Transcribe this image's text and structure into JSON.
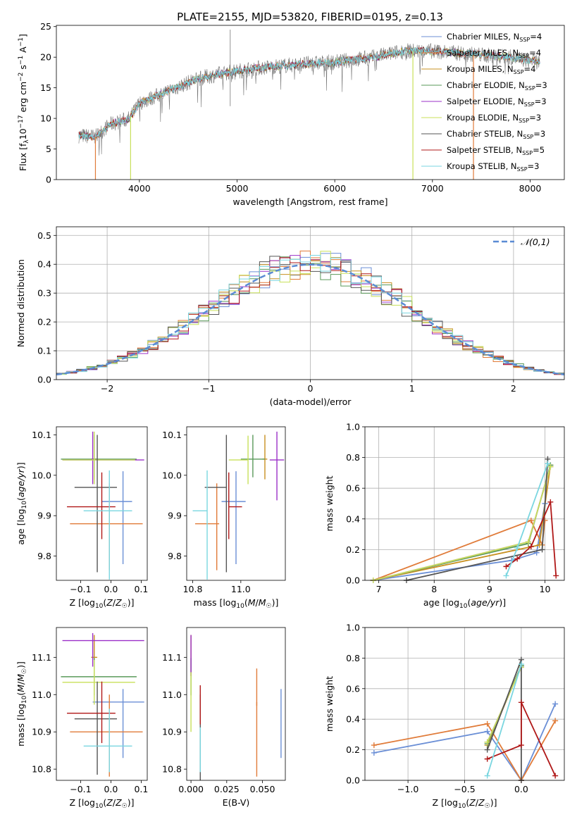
{
  "figure": {
    "title": "PLATE=2155, MJD=53820, FIBERID=0195, z=0.13"
  },
  "series_styles": [
    {
      "name": "Chabrier MILES",
      "nssp": "4",
      "color": "#6b8fd6"
    },
    {
      "name": "Salpeter MILES",
      "nssp": "4",
      "color": "#e07b39"
    },
    {
      "name": "Kroupa MILES",
      "nssp": "4",
      "color": "#c89020"
    },
    {
      "name": "Chabrier ELODIE",
      "nssp": "3",
      "color": "#5a9a5a"
    },
    {
      "name": "Salpeter ELODIE",
      "nssp": "3",
      "color": "#9b30c8"
    },
    {
      "name": "Kroupa ELODIE",
      "nssp": "3",
      "color": "#c8e05a"
    },
    {
      "name": "Chabrier STELIB",
      "nssp": "3",
      "color": "#555555"
    },
    {
      "name": "Salpeter STELIB",
      "nssp": "5",
      "color": "#b01818"
    },
    {
      "name": "Kroupa STELIB",
      "nssp": "3",
      "color": "#7ad6e0"
    }
  ],
  "chart_data": [
    {
      "id": "spectrum",
      "type": "line",
      "xlabel": "wavelength [Angstrom, rest frame]",
      "ylabel": "Flux [f_λ 10^-17 erg cm^-2 s^-1 A^-1]",
      "xlim": [
        3150,
        8350
      ],
      "ylim": [
        0,
        25.2
      ],
      "xticks": [
        4000,
        5000,
        6000,
        7000,
        8000
      ],
      "yticks": [
        0,
        5,
        10,
        15,
        20,
        25
      ],
      "legend": "right",
      "grid": false,
      "observed_spectrum_color": "#777777",
      "continuum_anchors": {
        "x": [
          3380,
          3550,
          3700,
          3900,
          4000,
          4300,
          4600,
          4900,
          5200,
          5600,
          6000,
          6400,
          6700,
          7000,
          7400,
          7800,
          8100
        ],
        "y": [
          7.2,
          7.0,
          9.0,
          10.0,
          12.5,
          14.5,
          16.5,
          17.5,
          18.2,
          18.8,
          19.2,
          20.0,
          21.0,
          21.0,
          20.5,
          20.0,
          19.2
        ]
      }
    },
    {
      "id": "residuals",
      "type": "histogram",
      "xlabel": "(data-model)/error",
      "ylabel": "Normed distribution",
      "xlim": [
        -2.5,
        2.5
      ],
      "ylim": [
        0,
        0.53
      ],
      "xticks": [
        -2,
        -1,
        0,
        1,
        2
      ],
      "yticks": [
        0.0,
        0.1,
        0.2,
        0.3,
        0.4,
        0.5
      ],
      "grid": true,
      "legend": "top-right",
      "normal_curve": {
        "label": "𝒩(0,1)",
        "color": "#5b8bd4",
        "mean": 0,
        "sigma": 1
      },
      "bin_width": 0.1
    },
    {
      "id": "age_vs_Z",
      "type": "errorbar",
      "xlabel": "Z [log10(Z/Z☉)]",
      "ylabel": "age [log10(age/yr)]",
      "xlim": [
        -0.18,
        0.12
      ],
      "ylim": [
        9.74,
        10.12
      ],
      "xticks": [
        -0.1,
        0.0,
        0.1
      ],
      "yticks": [
        9.8,
        9.9,
        10.0,
        10.1
      ],
      "points": [
        {
          "series": "Chabrier MILES",
          "x": 0.04,
          "xerr": [
            0.07,
            0.03
          ],
          "y": 9.935,
          "yerr": [
            0.155,
            0.075
          ]
        },
        {
          "series": "Salpeter MILES",
          "x": -0.005,
          "xerr": [
            0.13,
            0.11
          ],
          "y": 9.88,
          "yerr": [
            0.115,
            0.1
          ]
        },
        {
          "series": "Kroupa MILES",
          "x": -0.055,
          "xerr": [
            0.01,
            0.01
          ],
          "y": 10.04,
          "yerr": [
            0.05,
            0.06
          ]
        },
        {
          "series": "Chabrier ELODIE",
          "x": -0.055,
          "xerr": [
            0.11,
            0.14
          ],
          "y": 10.04,
          "yerr": [
            0.045,
            0.06
          ]
        },
        {
          "series": "Salpeter ELODIE",
          "x": -0.06,
          "xerr": [
            0.1,
            0.17
          ],
          "y": 10.038,
          "yerr": [
            0.06,
            0.07
          ]
        },
        {
          "series": "Kroupa ELODIE",
          "x": -0.055,
          "xerr": [
            0.105,
            0.135
          ],
          "y": 10.038,
          "yerr": [
            0.06,
            0.07
          ]
        },
        {
          "series": "Chabrier STELIB",
          "x": -0.045,
          "xerr": [
            0.075,
            0.065
          ],
          "y": 9.97,
          "yerr": [
            0.21,
            0.13
          ]
        },
        {
          "series": "Salpeter STELIB",
          "x": -0.03,
          "xerr": [
            0.115,
            0.045
          ],
          "y": 9.922,
          "yerr": [
            0.08,
            0.085
          ]
        },
        {
          "series": "Kroupa STELIB",
          "x": -0.005,
          "xerr": [
            0.085,
            0.075
          ],
          "y": 9.912,
          "yerr": [
            0.17,
            0.1
          ]
        }
      ]
    },
    {
      "id": "age_vs_mass",
      "type": "errorbar",
      "xlabel": "mass [log10(M/M☉)]",
      "ylabel": "",
      "xlim": [
        10.775,
        11.185
      ],
      "ylim": [
        9.74,
        10.12
      ],
      "xticks": [
        10.8,
        11.0
      ],
      "yticks": [
        9.8,
        9.9,
        10.0,
        10.1
      ],
      "points": [
        {
          "series": "Chabrier MILES",
          "x": 10.98,
          "xerr": [
            0.06,
            0.04
          ],
          "y": 9.935,
          "yerr": [
            0.155,
            0.075
          ]
        },
        {
          "series": "Salpeter MILES",
          "x": 10.9,
          "xerr": [
            0.09,
            0.01
          ],
          "y": 9.88,
          "yerr": [
            0.115,
            0.1
          ]
        },
        {
          "series": "Kroupa MILES",
          "x": 11.1,
          "xerr": [
            0.01,
            0.01
          ],
          "y": 10.04,
          "yerr": [
            0.05,
            0.06
          ]
        },
        {
          "series": "Chabrier ELODIE",
          "x": 11.05,
          "xerr": [
            0.05,
            0.05
          ],
          "y": 10.04,
          "yerr": [
            0.045,
            0.06
          ]
        },
        {
          "series": "Salpeter ELODIE",
          "x": 11.15,
          "xerr": [
            0.03,
            0.03
          ],
          "y": 10.038,
          "yerr": [
            0.1,
            0.07
          ]
        },
        {
          "series": "Kroupa ELODIE",
          "x": 11.03,
          "xerr": [
            0.08,
            0.0
          ],
          "y": 10.038,
          "yerr": [
            0.06,
            0.06
          ]
        },
        {
          "series": "Chabrier STELIB",
          "x": 10.94,
          "xerr": [
            0.09,
            0.0
          ],
          "y": 9.97,
          "yerr": [
            0.21,
            0.13
          ]
        },
        {
          "series": "Salpeter STELIB",
          "x": 10.95,
          "xerr": [
            0.0,
            0.055
          ],
          "y": 9.922,
          "yerr": [
            0.08,
            0.085
          ]
        },
        {
          "series": "Kroupa STELIB",
          "x": 10.86,
          "xerr": [
            0.06,
            0.0
          ],
          "y": 9.912,
          "yerr": [
            0.17,
            0.1
          ]
        }
      ]
    },
    {
      "id": "weight_vs_age",
      "type": "line",
      "xlabel": "age [log10(age/yr)]",
      "ylabel": "mass weight",
      "xlim": [
        6.75,
        10.35
      ],
      "ylim": [
        0,
        1
      ],
      "xticks": [
        7,
        8,
        9,
        10
      ],
      "yticks": [
        0.0,
        0.2,
        0.4,
        0.6,
        0.8,
        1.0
      ],
      "grid": true,
      "series": [
        {
          "name": "Chabrier MILES",
          "x": [
            6.9,
            9.4,
            9.85,
            10.0
          ],
          "y": [
            0.0,
            0.13,
            0.18,
            0.5
          ]
        },
        {
          "name": "Salpeter MILES",
          "x": [
            6.9,
            9.75,
            9.95,
            10.0
          ],
          "y": [
            0.0,
            0.39,
            0.23,
            0.39
          ]
        },
        {
          "name": "Kroupa MILES",
          "x": [
            6.9,
            9.9,
            10.1
          ],
          "y": [
            0.0,
            0.23,
            0.75
          ]
        },
        {
          "name": "Chabrier ELODIE",
          "x": [
            6.9,
            9.7,
            10.1
          ],
          "y": [
            0.0,
            0.24,
            0.75
          ]
        },
        {
          "name": "Salpeter ELODIE",
          "x": [
            6.9,
            9.7,
            10.1
          ],
          "y": [
            0.0,
            0.25,
            0.74
          ]
        },
        {
          "name": "Kroupa ELODIE",
          "x": [
            6.9,
            9.7,
            10.1
          ],
          "y": [
            0.0,
            0.25,
            0.74
          ]
        },
        {
          "name": "Chabrier STELIB",
          "x": [
            7.5,
            9.95,
            10.05
          ],
          "y": [
            0.0,
            0.2,
            0.79
          ]
        },
        {
          "name": "Salpeter STELIB",
          "x": [
            9.3,
            9.5,
            9.75,
            10.1,
            10.2
          ],
          "y": [
            0.09,
            0.14,
            0.22,
            0.51,
            0.03
          ]
        },
        {
          "name": "Kroupa STELIB",
          "x": [
            9.3,
            9.5,
            10.05
          ],
          "y": [
            0.03,
            0.21,
            0.76
          ]
        }
      ]
    },
    {
      "id": "mass_vs_Z",
      "type": "errorbar",
      "xlabel": "Z [log10(Z/Z☉)]",
      "ylabel": "mass [log10(M/M☉)]",
      "xlim": [
        -0.18,
        0.12
      ],
      "ylim": [
        10.77,
        11.18
      ],
      "xticks": [
        -0.1,
        0.0,
        0.1
      ],
      "yticks": [
        10.8,
        10.9,
        11.0,
        11.1
      ],
      "points": [
        {
          "series": "Chabrier MILES",
          "x": 0.04,
          "xerr": [
            0.1,
            0.07
          ],
          "y": 10.98,
          "yerr": [
            0.15,
            0.035
          ]
        },
        {
          "series": "Salpeter MILES",
          "x": -0.005,
          "xerr": [
            0.13,
            0.11
          ],
          "y": 10.9,
          "yerr": [
            0.12,
            0.1
          ]
        },
        {
          "series": "Kroupa MILES",
          "x": -0.055,
          "xerr": [
            0.01,
            0.01
          ],
          "y": 11.1,
          "yerr": [
            0.05,
            0.06
          ]
        },
        {
          "series": "Chabrier ELODIE",
          "x": -0.055,
          "xerr": [
            0.11,
            0.14
          ],
          "y": 11.048,
          "yerr": [
            0.05,
            0.05
          ]
        },
        {
          "series": "Salpeter ELODIE",
          "x": -0.06,
          "xerr": [
            0.1,
            0.17
          ],
          "y": 11.145,
          "yerr": [
            0.07,
            0.02
          ]
        },
        {
          "series": "Kroupa ELODIE",
          "x": -0.055,
          "xerr": [
            0.105,
            0.135
          ],
          "y": 11.033,
          "yerr": [
            0.06,
            0.06
          ]
        },
        {
          "series": "Chabrier STELIB",
          "x": -0.045,
          "xerr": [
            0.075,
            0.065
          ],
          "y": 10.935,
          "yerr": [
            0.15,
            0.1
          ]
        },
        {
          "series": "Salpeter STELIB",
          "x": -0.03,
          "xerr": [
            0.115,
            0.045
          ],
          "y": 10.95,
          "yerr": [
            0.08,
            0.085
          ]
        },
        {
          "series": "Kroupa STELIB",
          "x": -0.005,
          "xerr": [
            0.085,
            0.075
          ],
          "y": 10.862,
          "yerr": [
            0.07,
            0.1
          ]
        }
      ]
    },
    {
      "id": "mass_vs_ebv",
      "type": "errorbar",
      "xlabel": "E(B-V)",
      "ylabel": "",
      "xlim": [
        -0.003,
        0.066
      ],
      "ylim": [
        10.77,
        11.18
      ],
      "xticks": [
        0.0,
        0.025,
        0.05
      ],
      "yticks": [
        10.8,
        10.9,
        11.0,
        11.1
      ],
      "points": [
        {
          "series": "Chabrier MILES",
          "x": 0.063,
          "y": 10.98,
          "yerr": [
            0.15,
            0.035
          ]
        },
        {
          "series": "Salpeter MILES",
          "x": 0.046,
          "y": 10.9,
          "yerr": [
            0.12,
            0.08
          ]
        },
        {
          "series": "Kroupa MILES",
          "x": 0.0,
          "y": 11.1,
          "yerr": [
            0.05,
            0.06
          ]
        },
        {
          "series": "Chabrier ELODIE",
          "x": 0.0,
          "y": 11.048,
          "yerr": [
            0.05,
            0.05
          ]
        },
        {
          "series": "Salpeter ELODIE",
          "x": 0.0,
          "y": 11.1,
          "yerr": [
            0.05,
            0.06
          ]
        },
        {
          "series": "Kroupa ELODIE",
          "x": 0.0,
          "y": 11.0,
          "yerr": [
            0.1,
            0.06
          ]
        },
        {
          "series": "Chabrier STELIB",
          "x": 0.0065,
          "y": 10.9,
          "yerr": [
            0.13,
            0.1
          ]
        },
        {
          "series": "Salpeter STELIB",
          "x": 0.0065,
          "y": 10.95,
          "yerr": [
            0.03,
            0.075
          ]
        },
        {
          "series": "Kroupa STELIB",
          "x": 0.0065,
          "y": 10.862,
          "yerr": [
            0.07,
            0.05
          ]
        },
        {
          "series": "Salpeter MILES",
          "x": 0.046,
          "y": 11.0,
          "yerr": [
            0.03,
            0.07
          ]
        }
      ]
    },
    {
      "id": "weight_vs_Z",
      "type": "line",
      "xlabel": "Z [log10(Z/Z☉)]",
      "ylabel": "mass weight",
      "xlim": [
        -1.38,
        0.38
      ],
      "ylim": [
        0,
        1
      ],
      "xticks": [
        -1.0,
        -0.5,
        0.0
      ],
      "yticks": [
        0.0,
        0.2,
        0.4,
        0.6,
        0.8,
        1.0
      ],
      "grid": true,
      "series": [
        {
          "name": "Chabrier MILES",
          "x": [
            -1.3,
            -0.3,
            0.0,
            0.3
          ],
          "y": [
            0.18,
            0.32,
            0.0,
            0.5
          ]
        },
        {
          "name": "Salpeter MILES",
          "x": [
            -1.3,
            -0.3,
            0.0,
            0.3
          ],
          "y": [
            0.23,
            0.37,
            0.0,
            0.39
          ]
        },
        {
          "name": "Kroupa MILES",
          "x": [
            -0.3,
            0.0
          ],
          "y": [
            0.23,
            0.75
          ]
        },
        {
          "name": "Chabrier ELODIE",
          "x": [
            -0.3,
            0.0
          ],
          "y": [
            0.24,
            0.75
          ]
        },
        {
          "name": "Salpeter ELODIE",
          "x": [
            -0.3,
            0.0
          ],
          "y": [
            0.25,
            0.74
          ]
        },
        {
          "name": "Kroupa ELODIE",
          "x": [
            -0.3,
            0.0
          ],
          "y": [
            0.25,
            0.74
          ]
        },
        {
          "name": "Chabrier STELIB",
          "x": [
            -0.3,
            0.0,
            0.0
          ],
          "y": [
            0.2,
            0.79,
            0.0
          ]
        },
        {
          "name": "Salpeter STELIB",
          "x": [
            -0.3,
            0.0,
            0.0,
            0.3
          ],
          "y": [
            0.14,
            0.23,
            0.51,
            0.03
          ]
        },
        {
          "name": "Kroupa STELIB",
          "x": [
            -0.3,
            0.0
          ],
          "y": [
            0.03,
            0.76
          ]
        }
      ]
    }
  ]
}
